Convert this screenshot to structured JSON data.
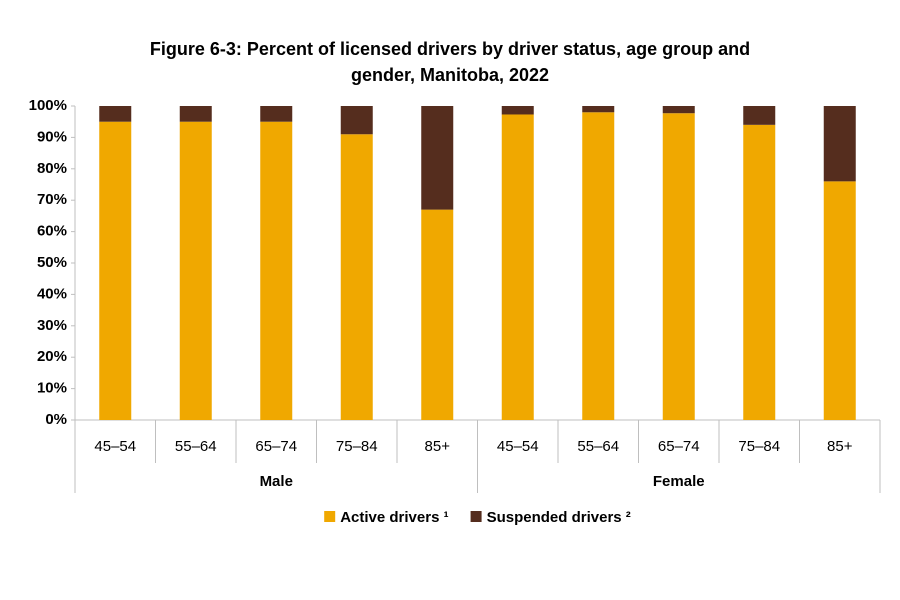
{
  "chart_data": {
    "type": "stacked_bar",
    "title": "Figure 6-3: Percent of licensed drivers by driver status, age group and gender, Manitoba, 2022",
    "groups": [
      {
        "name": "Male",
        "categories": [
          "45–54",
          "55–64",
          "65–74",
          "75–84",
          "85+"
        ]
      },
      {
        "name": "Female",
        "categories": [
          "45–54",
          "55–64",
          "65–74",
          "75–84",
          "85+"
        ]
      }
    ],
    "series": [
      {
        "name": "Active drivers ¹",
        "color": "#f0a800",
        "values": [
          95,
          95,
          95,
          91,
          67,
          97.3,
          98,
          97.7,
          94,
          76
        ]
      },
      {
        "name": "Suspended drivers ²",
        "color": "#552d1e",
        "values": [
          5,
          5,
          5,
          9,
          33,
          2.7,
          2,
          2.3,
          6,
          24
        ]
      }
    ],
    "ylim": [
      0,
      100
    ],
    "yticks": [
      {
        "value": 0,
        "label": "0%"
      },
      {
        "value": 10,
        "label": "10%"
      },
      {
        "value": 20,
        "label": "20%"
      },
      {
        "value": 30,
        "label": "30%"
      },
      {
        "value": 40,
        "label": "40%"
      },
      {
        "value": 50,
        "label": "50%"
      },
      {
        "value": 60,
        "label": "60%"
      },
      {
        "value": 70,
        "label": "70%"
      },
      {
        "value": 80,
        "label": "80%"
      },
      {
        "value": 90,
        "label": "90%"
      },
      {
        "value": 100,
        "label": "100%"
      }
    ],
    "legend": "bottom"
  }
}
